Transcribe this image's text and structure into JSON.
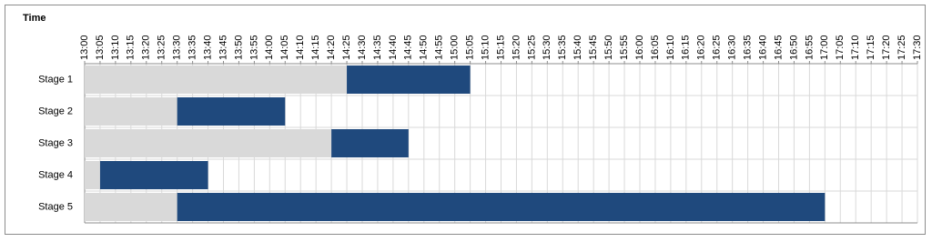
{
  "chart_data": {
    "type": "stacked-bar-horizontal",
    "x_label": "Time",
    "categories": [
      "Stage 1",
      "Stage 2",
      "Stage 3",
      "Stage 4",
      "Stage 5"
    ],
    "series": [
      {
        "color": "#d9d9d9",
        "values": [
          85,
          30,
          80,
          5,
          30
        ]
      },
      {
        "color": "#1f497d",
        "values": [
          40,
          35,
          25,
          35,
          210
        ]
      }
    ],
    "xlim": [
      0,
      270
    ],
    "xticks": [
      {
        "value": 0,
        "label": "13:00"
      },
      {
        "value": 5,
        "label": "13:05"
      },
      {
        "value": 10,
        "label": "13:10"
      },
      {
        "value": 15,
        "label": "13:15"
      },
      {
        "value": 20,
        "label": "13:20"
      },
      {
        "value": 25,
        "label": "13:25"
      },
      {
        "value": 30,
        "label": "13:30"
      },
      {
        "value": 35,
        "label": "13:35"
      },
      {
        "value": 40,
        "label": "13:40"
      },
      {
        "value": 45,
        "label": "13:45"
      },
      {
        "value": 50,
        "label": "13:50"
      },
      {
        "value": 55,
        "label": "13:55"
      },
      {
        "value": 60,
        "label": "14:00"
      },
      {
        "value": 65,
        "label": "14:05"
      },
      {
        "value": 70,
        "label": "14:10"
      },
      {
        "value": 75,
        "label": "14:15"
      },
      {
        "value": 80,
        "label": "14:20"
      },
      {
        "value": 85,
        "label": "14:25"
      },
      {
        "value": 90,
        "label": "14:30"
      },
      {
        "value": 95,
        "label": "14:35"
      },
      {
        "value": 100,
        "label": "14:40"
      },
      {
        "value": 105,
        "label": "14:45"
      },
      {
        "value": 110,
        "label": "14:50"
      },
      {
        "value": 115,
        "label": "14:55"
      },
      {
        "value": 120,
        "label": "15:00"
      },
      {
        "value": 125,
        "label": "15:05"
      },
      {
        "value": 130,
        "label": "15:10"
      },
      {
        "value": 135,
        "label": "15:15"
      },
      {
        "value": 140,
        "label": "15:20"
      },
      {
        "value": 145,
        "label": "15:25"
      },
      {
        "value": 150,
        "label": "15:30"
      },
      {
        "value": 155,
        "label": "15:35"
      },
      {
        "value": 160,
        "label": "15:40"
      },
      {
        "value": 165,
        "label": "15:45"
      },
      {
        "value": 170,
        "label": "15:50"
      },
      {
        "value": 175,
        "label": "15:55"
      },
      {
        "value": 180,
        "label": "16:00"
      },
      {
        "value": 185,
        "label": "16:05"
      },
      {
        "value": 190,
        "label": "16:10"
      },
      {
        "value": 195,
        "label": "16:15"
      },
      {
        "value": 200,
        "label": "16:20"
      },
      {
        "value": 205,
        "label": "16:25"
      },
      {
        "value": 210,
        "label": "16:30"
      },
      {
        "value": 215,
        "label": "16:35"
      },
      {
        "value": 220,
        "label": "16:40"
      },
      {
        "value": 225,
        "label": "16:45"
      },
      {
        "value": 230,
        "label": "16:50"
      },
      {
        "value": 235,
        "label": "16:55"
      },
      {
        "value": 240,
        "label": "17:00"
      },
      {
        "value": 245,
        "label": "17:05"
      },
      {
        "value": 250,
        "label": "17:10"
      },
      {
        "value": 255,
        "label": "17:15"
      },
      {
        "value": 260,
        "label": "17:20"
      },
      {
        "value": 265,
        "label": "17:25"
      },
      {
        "value": 270,
        "label": "17:30"
      }
    ],
    "grid": true
  }
}
